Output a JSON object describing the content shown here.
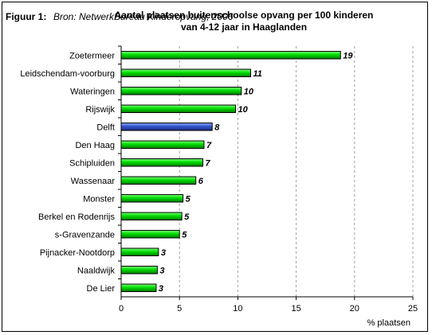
{
  "figure_label": "Figuur 1:",
  "source": "Bron: NetwerkBureau Kinderopvang, 2006",
  "chart_data": {
    "type": "bar",
    "orientation": "horizontal",
    "title": "Aantal plaatsen buitenschoolse opvang per 100 kinderen van 4-12 jaar in Haaglanden",
    "title_lines": [
      "Aantal plaatsen buitenschoolse opvang per 100 kinderen",
      "van 4-12 jaar in Haaglanden"
    ],
    "xlabel": "% plaatsen",
    "ylabel": "",
    "xlim": [
      0,
      25
    ],
    "xticks": [
      0,
      5,
      10,
      15,
      20,
      25
    ],
    "grid": "vertical dashed",
    "legend": "none",
    "categories": [
      "Zoetermeer",
      "Leidschendam-voorburg",
      "Wateringen",
      "Rijswijk",
      "Delft",
      "Den Haag",
      "Schipluiden",
      "Wassenaar",
      "Monster",
      "Berkel en Rodenrijs",
      "s-Gravenzande",
      "Pijnacker-Nootdorp",
      "Naaldwijk",
      "De Lier"
    ],
    "values": [
      18.8,
      11.1,
      10.3,
      9.8,
      7.8,
      7.1,
      7.0,
      6.4,
      5.3,
      5.2,
      5.0,
      3.2,
      3.1,
      3.0
    ],
    "data_labels": [
      "19",
      "11",
      "10",
      "10",
      "8",
      "7",
      "7",
      "6",
      "5",
      "5",
      "5",
      "3",
      "3",
      "3"
    ],
    "highlight": "Delft",
    "colors": {
      "bar": "#00cc00",
      "bar_highlight": "#3355cc",
      "bar_stroke": "#000000",
      "grid": "#a0a0a0"
    }
  }
}
